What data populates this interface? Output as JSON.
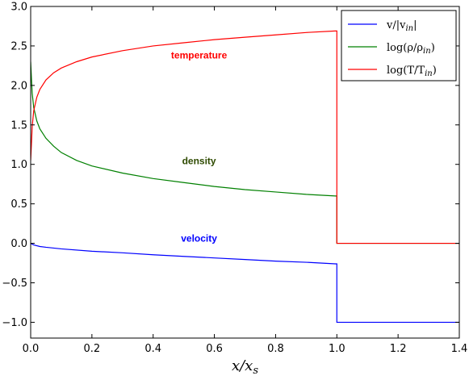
{
  "chart_data": {
    "type": "line",
    "xlabel": "x/x_s",
    "ylabel": "",
    "xlim": [
      0.0,
      1.4
    ],
    "ylim": [
      -1.2,
      3.0
    ],
    "xticks": [
      "0.0",
      "0.2",
      "0.4",
      "0.6",
      "0.8",
      "1.0",
      "1.2",
      "1.4"
    ],
    "yticks": [
      "-1.0",
      "-0.5",
      "0.0",
      "0.5",
      "1.0",
      "1.5",
      "2.0",
      "2.5",
      "3.0"
    ],
    "legend_position": "top-right",
    "series": [
      {
        "name": "v/|v_in|",
        "color": "#0000ff",
        "x": [
          0.0,
          0.005,
          0.01,
          0.03,
          0.05,
          0.1,
          0.2,
          0.3,
          0.4,
          0.5,
          0.6,
          0.7,
          0.8,
          0.9,
          0.995,
          1.0,
          1.0,
          1.1,
          1.2,
          1.3,
          1.4
        ],
        "y": [
          0.0,
          -0.01,
          -0.02,
          -0.04,
          -0.05,
          -0.07,
          -0.1,
          -0.12,
          -0.145,
          -0.165,
          -0.185,
          -0.205,
          -0.225,
          -0.24,
          -0.26,
          -0.26,
          -1.0,
          -1.0,
          -1.0,
          -1.0,
          -1.0
        ]
      },
      {
        "name": "log(ρ/ρ_in)",
        "color": "#008000",
        "x": [
          0.0,
          0.003,
          0.005,
          0.01,
          0.02,
          0.03,
          0.05,
          0.075,
          0.1,
          0.15,
          0.2,
          0.3,
          0.4,
          0.5,
          0.6,
          0.7,
          0.8,
          0.9,
          0.995,
          1.0,
          1.0,
          1.1,
          1.2,
          1.3,
          1.4
        ],
        "y": [
          2.3,
          2.05,
          1.9,
          1.72,
          1.55,
          1.45,
          1.33,
          1.23,
          1.15,
          1.05,
          0.98,
          0.89,
          0.82,
          0.77,
          0.72,
          0.68,
          0.65,
          0.62,
          0.6,
          0.6,
          0.0,
          0.0,
          0.0,
          0.0,
          0.0
        ]
      },
      {
        "name": "log(T/T_in)",
        "color": "#ff0000",
        "x": [
          0.0,
          0.003,
          0.005,
          0.01,
          0.02,
          0.03,
          0.05,
          0.075,
          0.1,
          0.15,
          0.2,
          0.3,
          0.4,
          0.5,
          0.6,
          0.7,
          0.8,
          0.9,
          0.995,
          1.0,
          1.0,
          1.1,
          1.2,
          1.3,
          1.4
        ],
        "y": [
          1.05,
          1.3,
          1.48,
          1.68,
          1.85,
          1.95,
          2.07,
          2.16,
          2.22,
          2.3,
          2.36,
          2.44,
          2.5,
          2.54,
          2.58,
          2.61,
          2.64,
          2.67,
          2.69,
          2.69,
          0.0,
          0.0,
          0.0,
          0.0,
          0.0
        ]
      }
    ],
    "annotations": [
      {
        "text": "temperature",
        "x": 0.55,
        "y": 2.34,
        "color": "#ff0000"
      },
      {
        "text": "density",
        "x": 0.55,
        "y": 1.0,
        "color": "#2e4a00"
      },
      {
        "text": "velocity",
        "x": 0.55,
        "y": 0.02,
        "color": "#0000ff"
      }
    ]
  }
}
